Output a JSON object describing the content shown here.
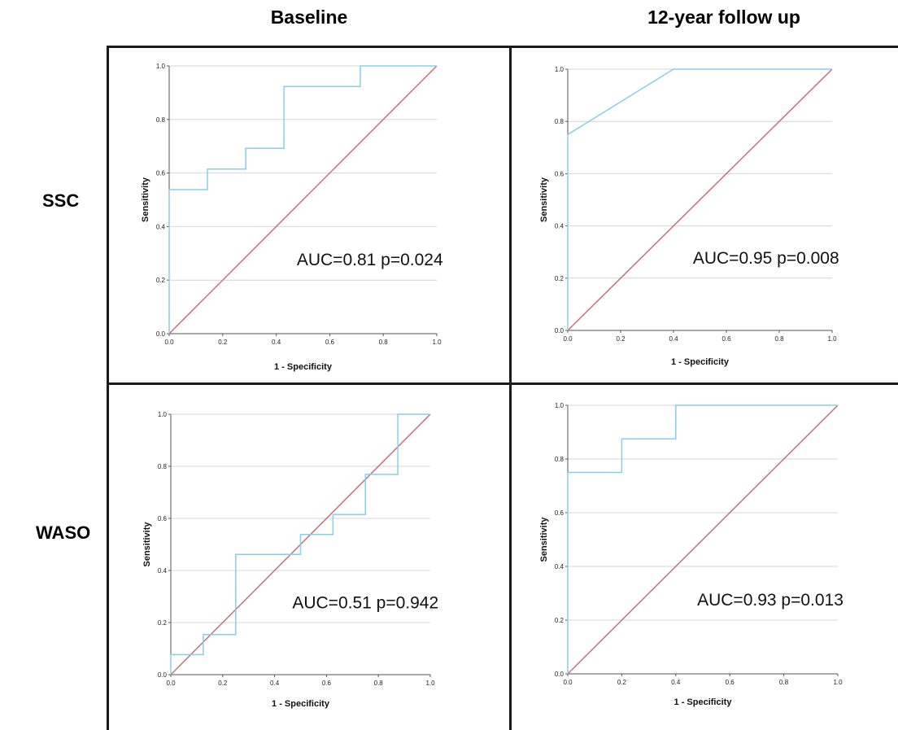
{
  "headers": {
    "columns": [
      "Baseline",
      "12-year follow up"
    ],
    "rows": [
      "SSC",
      "WASO"
    ]
  },
  "colors": {
    "roc": "#87ceeb",
    "reference": "#c4717a",
    "gridline": "#d4d4d4",
    "frame": "#1a1a1a"
  },
  "chart_data": [
    {
      "type": "line",
      "panel": "SSC-Baseline",
      "xlabel": "1 - Specificity",
      "ylabel": "Sensitivity",
      "xlim": [
        0,
        1
      ],
      "ylim": [
        0,
        1
      ],
      "ticks": [
        "0.0",
        "0.2",
        "0.4",
        "0.6",
        "0.8",
        "1.0"
      ],
      "grid": "horizontal",
      "annotation": "AUC=0.81 p=0.024",
      "series": [
        {
          "role": "roc",
          "x": [
            0,
            0,
            0.143,
            0.143,
            0.286,
            0.286,
            0.429,
            0.429,
            0.714,
            0.714,
            1.0
          ],
          "y": [
            0,
            0.538,
            0.538,
            0.615,
            0.615,
            0.692,
            0.692,
            0.923,
            0.923,
            1.0,
            1.0
          ]
        },
        {
          "role": "reference",
          "x": [
            0,
            1
          ],
          "y": [
            0,
            1
          ]
        }
      ]
    },
    {
      "type": "line",
      "panel": "SSC-12-year",
      "xlabel": "1 - Specificity",
      "ylabel": "Sensitivity",
      "xlim": [
        0,
        1
      ],
      "ylim": [
        0,
        1
      ],
      "ticks": [
        "0.0",
        "0.2",
        "0.4",
        "0.6",
        "0.8",
        "1.0"
      ],
      "grid": "horizontal",
      "annotation": "AUC=0.95 p=0.008",
      "series": [
        {
          "role": "roc",
          "x": [
            0,
            0,
            0.4,
            1.0
          ],
          "y": [
            0,
            0.75,
            1.0,
            1.0
          ]
        },
        {
          "role": "reference",
          "x": [
            0,
            1
          ],
          "y": [
            0,
            1
          ]
        }
      ]
    },
    {
      "type": "line",
      "panel": "WASO-Baseline",
      "xlabel": "1 - Specificity",
      "ylabel": "Sensitivity",
      "xlim": [
        0,
        1
      ],
      "ylim": [
        0,
        1
      ],
      "ticks": [
        "0.0",
        "0.2",
        "0.4",
        "0.6",
        "0.8",
        "1.0"
      ],
      "grid": "horizontal",
      "annotation": "AUC=0.51 p=0.942",
      "series": [
        {
          "role": "roc",
          "x": [
            0,
            0,
            0.125,
            0.125,
            0.25,
            0.25,
            0.5,
            0.5,
            0.625,
            0.625,
            0.75,
            0.75,
            0.875,
            0.875,
            1.0
          ],
          "y": [
            0,
            0.077,
            0.077,
            0.154,
            0.154,
            0.462,
            0.462,
            0.538,
            0.538,
            0.615,
            0.615,
            0.769,
            0.769,
            1.0,
            1.0
          ]
        },
        {
          "role": "reference",
          "x": [
            0,
            1
          ],
          "y": [
            0,
            1
          ]
        }
      ]
    },
    {
      "type": "line",
      "panel": "WASO-12-year",
      "xlabel": "1 - Specificity",
      "ylabel": "Sensitivity",
      "xlim": [
        0,
        1
      ],
      "ylim": [
        0,
        1
      ],
      "ticks": [
        "0.0",
        "0.2",
        "0.4",
        "0.6",
        "0.8",
        "1.0"
      ],
      "grid": "horizontal",
      "annotation": "AUC=0.93 p=0.013",
      "series": [
        {
          "role": "roc",
          "x": [
            0,
            0,
            0.2,
            0.2,
            0.4,
            0.4,
            1.0
          ],
          "y": [
            0,
            0.75,
            0.75,
            0.875,
            0.875,
            1.0,
            1.0
          ]
        },
        {
          "role": "reference",
          "x": [
            0,
            1
          ],
          "y": [
            0,
            1
          ]
        }
      ]
    }
  ]
}
